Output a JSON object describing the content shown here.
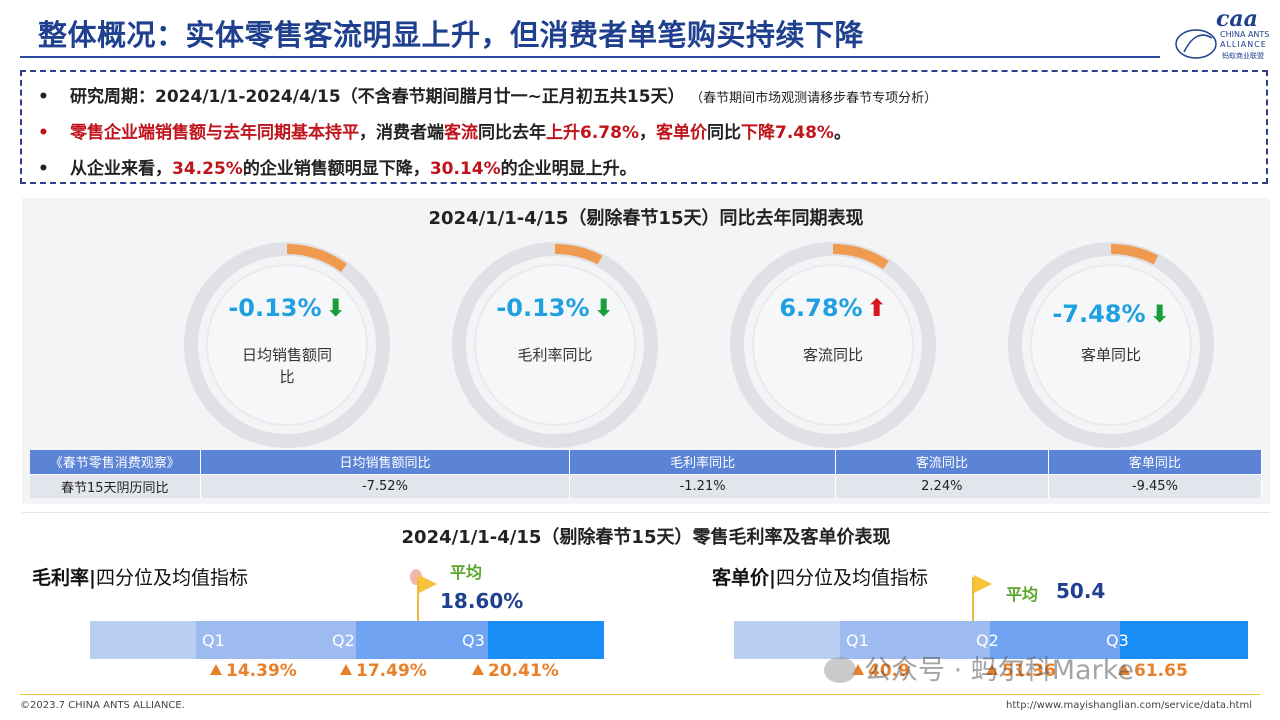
{
  "header": {
    "title": "整体概况：实体零售客流明显上升，但消费者单笔购买持续下降",
    "logo_mark": "caa",
    "logo_line1": "CHINA ANTS",
    "logo_line2": "ALLIANCE",
    "logo_line3": "蚂蚁商业联盟"
  },
  "summary": {
    "bullet_symbol": "•",
    "b1_text": "研究周期：2024/1/1-2024/4/15（不含春节期间腊月廿一~正月初五共15天）",
    "b1_note": "（春节期间市场观测请移步春节专项分析）",
    "b2_p1": "零售企业端销售额与去年同期基本持平",
    "b2_p2": "，消费者端",
    "b2_p3": "客流",
    "b2_p4": "同比去年",
    "b2_p5": "上升6.78%",
    "b2_p6": "，",
    "b2_p7": "客单价",
    "b2_p8": "同比",
    "b2_p9": "下降7.48%",
    "b2_p10": "。",
    "b3_p1": "从企业来看，",
    "b3_p2": "34.25%",
    "b3_p3": "的企业销售额明显下降，",
    "b3_p4": "30.14%",
    "b3_p5": "的企业明显上升。"
  },
  "section1": {
    "title": "2024/1/1-4/15（剔除春节15天）同比去年同期表现",
    "gauges": [
      {
        "value": "-0.13%",
        "label": "日均销售额同比",
        "direction": "down",
        "arrow": "⬇"
      },
      {
        "value": "-0.13%",
        "label": "毛利率同比",
        "direction": "down",
        "arrow": "⬇"
      },
      {
        "value": "6.78%",
        "label": "客流同比",
        "direction": "up",
        "arrow": "⬆"
      },
      {
        "value": "-7.48%",
        "label": "客单同比",
        "direction": "down",
        "arrow": "⬇"
      }
    ],
    "table": {
      "headers": [
        "《春节零售消费观察》",
        "日均销售额同比",
        "毛利率同比",
        "客流同比",
        "客单同比"
      ],
      "row": [
        "春节15天阴历同比",
        "-7.52%",
        "-1.21%",
        "2.24%",
        "-9.45%"
      ]
    }
  },
  "section2": {
    "title": "2024/1/1-4/15（剔除春节15天）零售毛利率及客单价表现",
    "left": {
      "subtitle_bold": "毛利率|",
      "subtitle_rest": "四分位及均值指标",
      "avg_word": "平均",
      "avg_value": "18.60%",
      "quartiles": [
        {
          "label": "Q1",
          "value": "14.39%"
        },
        {
          "label": "Q2",
          "value": "17.49%"
        },
        {
          "label": "Q3",
          "value": "20.41%"
        }
      ]
    },
    "right": {
      "subtitle_bold": "客单价|",
      "subtitle_rest": "四分位及均值指标",
      "avg_word": "平均",
      "avg_value": "50.4",
      "quartiles": [
        {
          "label": "Q1",
          "value": "40.9"
        },
        {
          "label": "Q2",
          "value": "51.36"
        },
        {
          "label": "Q3",
          "value": "61.65"
        }
      ]
    }
  },
  "footer": {
    "copyright": "©2023.7 CHINA ANTS ALLIANCE.",
    "url": "http://www.mayishanglian.com/service/data.html",
    "watermark": "公众号 · 蚂尔科Marke"
  },
  "colors": {
    "title_blue": "#1f3f8f",
    "accent_red": "#c0141c",
    "value_blue": "#1fa0e0",
    "down_green": "#1a9e3a",
    "up_red": "#d6151c",
    "quartile_orange": "#e8802a",
    "bar_light": "#b9cef2",
    "bar_mid": "#7aa7f0",
    "bar_dark": "#1a8cf5"
  }
}
